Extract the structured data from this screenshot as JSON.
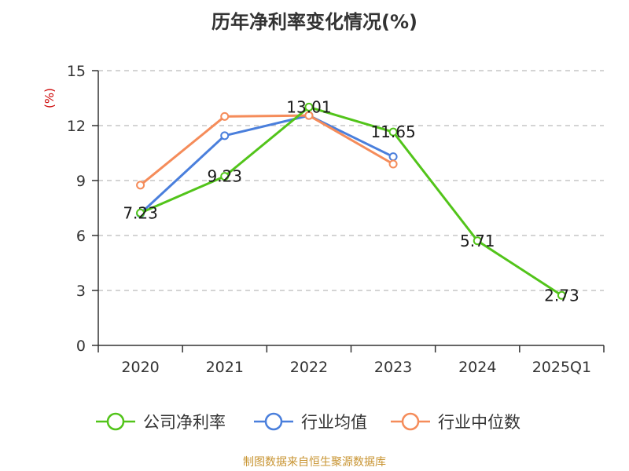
{
  "chart_data": {
    "type": "line",
    "title": "历年净利率变化情况(%)",
    "ylabel": "(%)",
    "xlabel": "",
    "categories": [
      "2020",
      "2021",
      "2022",
      "2023",
      "2024",
      "2025Q1"
    ],
    "ylim": [
      0,
      15
    ],
    "yticks": [
      0,
      3,
      6,
      9,
      12,
      15
    ],
    "grid": true,
    "legend_position": "bottom",
    "series": [
      {
        "name": "公司净利率",
        "color": "#52c41a",
        "values": [
          7.23,
          9.23,
          13.01,
          11.65,
          5.71,
          2.73
        ],
        "labels": [
          "7.23",
          "9.23",
          "13.01",
          "11.65",
          "5.71",
          "2.73"
        ]
      },
      {
        "name": "行业均值",
        "color": "#4a7fdc",
        "values": [
          7.2,
          11.45,
          12.55,
          10.3,
          null,
          null
        ]
      },
      {
        "name": "行业中位数",
        "color": "#f58c5a",
        "values": [
          8.75,
          12.5,
          12.55,
          9.9,
          null,
          null
        ]
      }
    ]
  },
  "source": "制图数据来自恒生聚源数据库"
}
